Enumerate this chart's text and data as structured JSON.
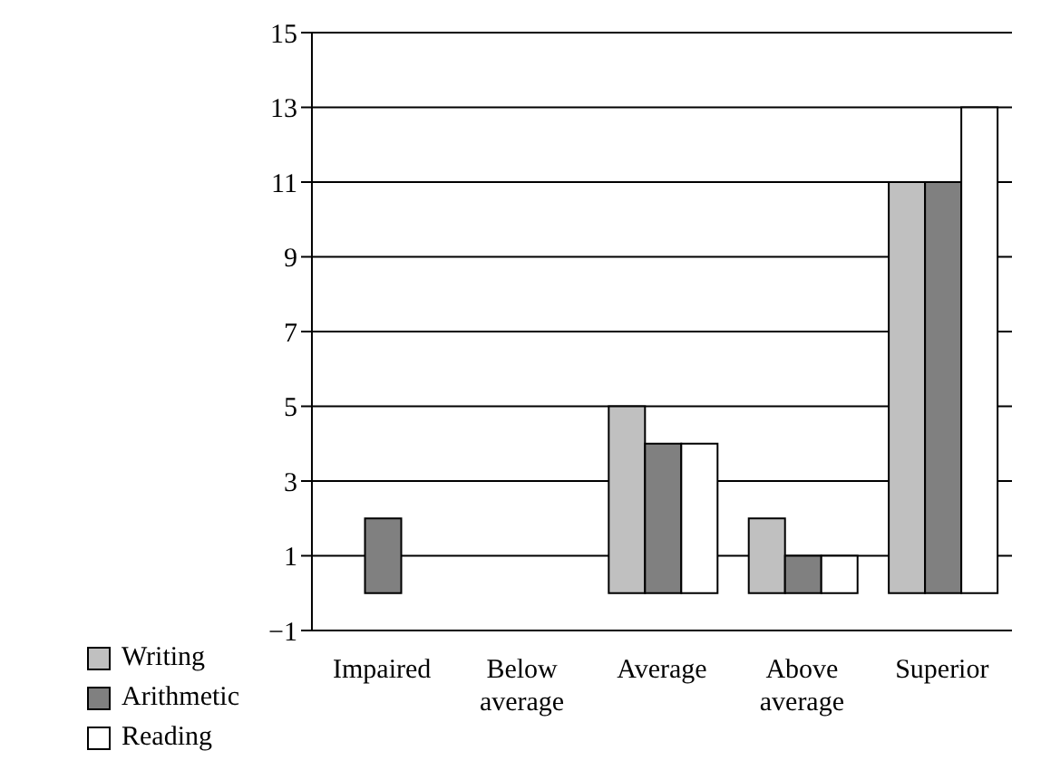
{
  "chart_data": {
    "type": "bar",
    "categories": [
      "Impaired",
      "Below average",
      "Average",
      "Above average",
      "Superior"
    ],
    "series": [
      {
        "name": "Writing",
        "color": "#c0c0c0",
        "values": [
          0,
          0,
          5,
          2,
          11
        ]
      },
      {
        "name": "Arithmetic",
        "color": "#808080",
        "values": [
          2,
          0,
          4,
          1,
          11
        ]
      },
      {
        "name": "Reading",
        "color": "#ffffff",
        "values": [
          0,
          0,
          4,
          1,
          13
        ]
      }
    ],
    "ylim": [
      -1,
      15
    ],
    "yticks": [
      -1,
      1,
      3,
      5,
      7,
      9,
      11,
      13,
      15
    ],
    "grid": "y",
    "legend": "bottom left"
  }
}
